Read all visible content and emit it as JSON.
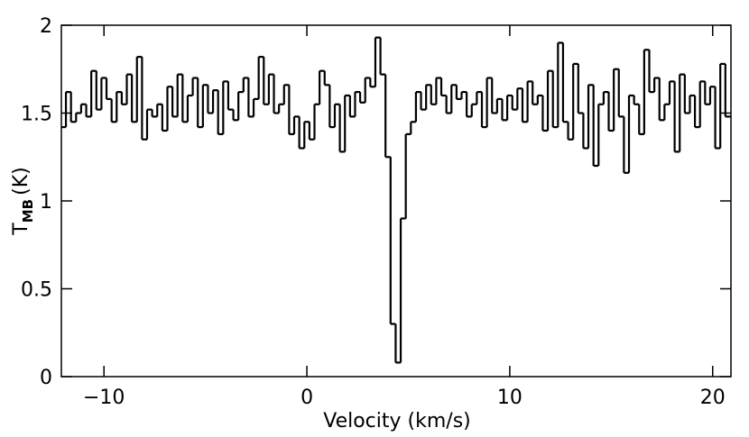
{
  "chart_data": {
    "type": "step",
    "xlabel": "Velocity (km/s)",
    "ylabel": {
      "main": "T",
      "sub": "MB",
      "unit": "(K)"
    },
    "xlim": [
      -12.1,
      20.9
    ],
    "ylim": [
      0,
      2
    ],
    "xticks": [
      {
        "value": -10,
        "label": "−10"
      },
      0,
      10,
      20
    ],
    "yticks": [
      0,
      0.5,
      1,
      1.5,
      2
    ],
    "color": "#000000",
    "x": [
      -12,
      -11.75,
      -11.5,
      -11.25,
      -11,
      -10.75,
      -10.5,
      -10.25,
      -10,
      -9.75,
      -9.5,
      -9.25,
      -9,
      -8.75,
      -8.5,
      -8.25,
      -8,
      -7.75,
      -7.5,
      -7.25,
      -7,
      -6.75,
      -6.5,
      -6.25,
      -6,
      -5.75,
      -5.5,
      -5.25,
      -5,
      -4.75,
      -4.5,
      -4.25,
      -4,
      -3.75,
      -3.5,
      -3.25,
      -3,
      -2.75,
      -2.5,
      -2.25,
      -2,
      -1.75,
      -1.5,
      -1.25,
      -1,
      -0.75,
      -0.5,
      -0.25,
      0,
      0.25,
      0.5,
      0.75,
      1,
      1.25,
      1.5,
      1.75,
      2,
      2.25,
      2.5,
      2.75,
      3,
      3.25,
      3.5,
      3.75,
      4,
      4.25,
      4.5,
      4.75,
      5,
      5.25,
      5.5,
      5.75,
      6,
      6.25,
      6.5,
      6.75,
      7,
      7.25,
      7.5,
      7.75,
      8,
      8.25,
      8.5,
      8.75,
      9,
      9.25,
      9.5,
      9.75,
      10,
      10.25,
      10.5,
      10.75,
      11,
      11.25,
      11.5,
      11.75,
      12,
      12.25,
      12.5,
      12.75,
      13,
      13.25,
      13.5,
      13.75,
      14,
      14.25,
      14.5,
      14.75,
      15,
      15.25,
      15.5,
      15.75,
      16,
      16.25,
      16.5,
      16.75,
      17,
      17.25,
      17.5,
      17.75,
      18,
      18.25,
      18.5,
      18.75,
      19,
      19.25,
      19.5,
      19.75,
      20,
      20.25,
      20.5,
      20.75
    ],
    "values": [
      1.42,
      1.62,
      1.45,
      1.5,
      1.55,
      1.48,
      1.74,
      1.52,
      1.7,
      1.58,
      1.45,
      1.62,
      1.55,
      1.72,
      1.45,
      1.82,
      1.35,
      1.52,
      1.48,
      1.55,
      1.4,
      1.65,
      1.48,
      1.72,
      1.45,
      1.6,
      1.7,
      1.42,
      1.66,
      1.5,
      1.63,
      1.38,
      1.68,
      1.52,
      1.46,
      1.62,
      1.7,
      1.48,
      1.58,
      1.82,
      1.55,
      1.72,
      1.5,
      1.55,
      1.66,
      1.38,
      1.48,
      1.3,
      1.45,
      1.35,
      1.55,
      1.74,
      1.66,
      1.42,
      1.55,
      1.28,
      1.6,
      1.48,
      1.62,
      1.56,
      1.7,
      1.65,
      1.93,
      1.72,
      1.25,
      0.3,
      0.08,
      0.9,
      1.38,
      1.45,
      1.62,
      1.52,
      1.66,
      1.55,
      1.7,
      1.6,
      1.5,
      1.66,
      1.58,
      1.62,
      1.48,
      1.55,
      1.62,
      1.42,
      1.7,
      1.5,
      1.58,
      1.46,
      1.6,
      1.52,
      1.64,
      1.45,
      1.68,
      1.55,
      1.6,
      1.4,
      1.74,
      1.42,
      1.9,
      1.45,
      1.35,
      1.78,
      1.5,
      1.3,
      1.66,
      1.2,
      1.55,
      1.62,
      1.4,
      1.75,
      1.48,
      1.16,
      1.6,
      1.55,
      1.38,
      1.86,
      1.62,
      1.7,
      1.46,
      1.55,
      1.68,
      1.28,
      1.72,
      1.5,
      1.6,
      1.42,
      1.68,
      1.55,
      1.65,
      1.3,
      1.78,
      1.48
    ]
  }
}
